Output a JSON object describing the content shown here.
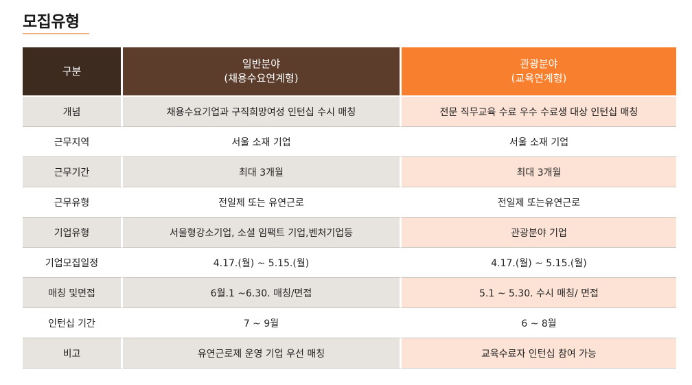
{
  "page": {
    "title": "모집유형"
  },
  "table": {
    "headers": {
      "category": "구분",
      "general": {
        "line1": "일반분야",
        "line2": "(채용수요연계형)"
      },
      "tourism": {
        "line1": "관광분야",
        "line2": "(교육연계형)"
      }
    },
    "rows": [
      {
        "category": "개념",
        "general": "채용수요기업과 구직희망여성 인턴십 수시 매칭",
        "tourism": "전문 직무교육 수료 우수 수료생 대상 인턴십 매칭"
      },
      {
        "category": "근무지역",
        "general": "서울 소재 기업",
        "tourism": "서울 소재 기업"
      },
      {
        "category": "근무기간",
        "general": "최대 3개월",
        "tourism": "최대 3개월"
      },
      {
        "category": "근무유형",
        "general": "전일제 또는 유연근로",
        "tourism": "전일제 또는유연근로"
      },
      {
        "category": "기업유형",
        "general": "서울형강소기업, 소셜 임팩트 기업,벤처기업등",
        "tourism": "관광분야 기업"
      },
      {
        "category": "기업모집일정",
        "general": "4.17.(월) ~ 5.15.(월)",
        "tourism": "4.17.(월) ~ 5.15.(월)"
      },
      {
        "category": "매칭 및면접",
        "general": "6월.1 ~6.30. 매칭/면접",
        "tourism": "5.1 ~ 5.30. 수시 매칭/ 면접"
      },
      {
        "category": "인턴십 기간",
        "general": "7 ~ 9월",
        "tourism": "6 ~ 8월"
      },
      {
        "category": "비고",
        "general": "유연근로제 운영 기업 우선 매칭",
        "tourism": "교육수료자 인턴십 참여 가능"
      }
    ]
  },
  "colors": {
    "header_category": "#3d2b20",
    "header_general": "#5c3d2c",
    "header_tourism": "#f77f2d",
    "row_shade_gray": "#e7e3df",
    "row_shade_peach": "#fde3d5",
    "title_underline": "#f0b07a"
  }
}
